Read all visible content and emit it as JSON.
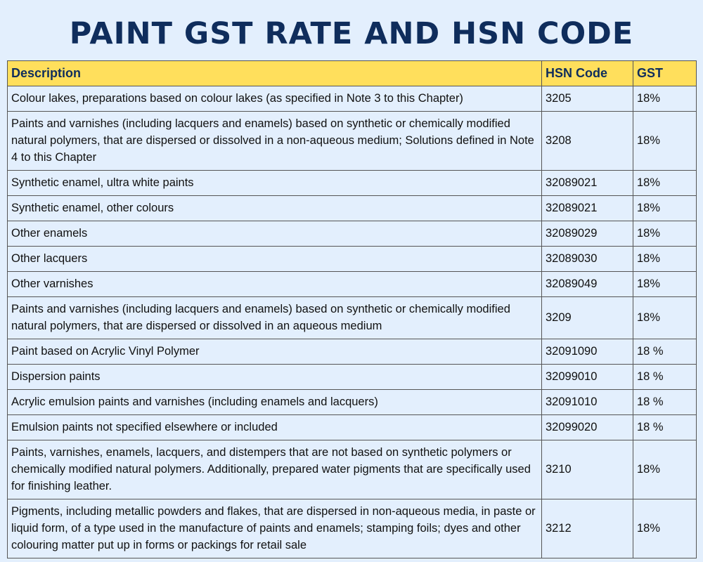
{
  "header": {
    "title": "PAINT GST RATE AND HSN CODE"
  },
  "table": {
    "columns": [
      "Description",
      "HSN Code",
      "GST"
    ],
    "rows": [
      [
        "Colour lakes, preparations based on colour lakes (as specified in Note 3 to this Chapter)",
        "3205",
        "18%"
      ],
      [
        "Paints and varnishes (including lacquers and enamels) based on synthetic or chemically modified natural polymers, that are dispersed or dissolved in a non-aqueous medium; Solutions defined in Note 4 to this Chapter",
        "3208",
        "18%"
      ],
      [
        "Synthetic enamel, ultra white paints",
        "32089021",
        "18%"
      ],
      [
        "Synthetic enamel, other colours",
        "32089021",
        "18%"
      ],
      [
        "Other enamels",
        "32089029",
        "18%"
      ],
      [
        "Other lacquers",
        "32089030",
        "18%"
      ],
      [
        "Other varnishes",
        "32089049",
        "18%"
      ],
      [
        "Paints and varnishes (including lacquers and enamels) based on synthetic or chemically modified natural polymers, that are dispersed or dissolved in an aqueous medium",
        "3209",
        "18%"
      ],
      [
        "Paint based on Acrylic Vinyl Polymer",
        "32091090",
        "18 %"
      ],
      [
        "Dispersion paints",
        "32099010",
        "18 %"
      ],
      [
        "Acrylic emulsion paints and varnishes (including enamels and lacquers)",
        "32091010",
        "18 %"
      ],
      [
        "Emulsion paints not specified elsewhere or included",
        "32099020",
        "18 %"
      ],
      [
        "Paints, varnishes, enamels, lacquers, and distempers that are not based on synthetic polymers or chemically modified natural polymers. Additionally, prepared water pigments that are specifically used for finishing leather.",
        "3210",
        "18%"
      ],
      [
        "Pigments, including metallic powders and flakes, that are dispersed in non-aqueous media, in paste or liquid form, of a type used in the manufacture of paints and enamels; stamping foils; dyes and other colouring matter put up in forms or packings for retail sale",
        "3212",
        "18%"
      ]
    ]
  }
}
